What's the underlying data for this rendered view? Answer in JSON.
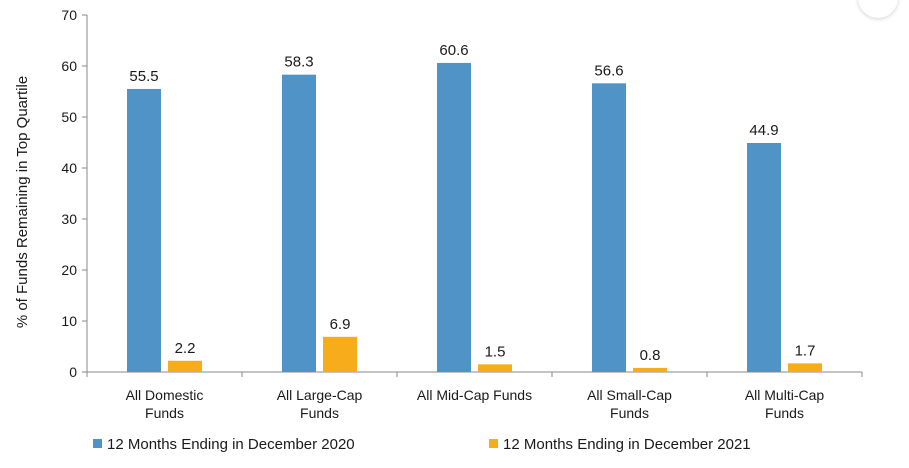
{
  "chart_data": {
    "type": "bar",
    "categories": [
      [
        "All Domestic",
        "Funds"
      ],
      [
        "All Large-Cap",
        "Funds"
      ],
      [
        "All Mid-Cap Funds"
      ],
      [
        "All Small-Cap",
        "Funds"
      ],
      [
        "All Multi-Cap",
        "Funds"
      ]
    ],
    "series": [
      {
        "name": "12 Months Ending in December 2020",
        "color": "#4f93c7",
        "values": [
          55.5,
          58.3,
          60.6,
          56.6,
          44.9
        ]
      },
      {
        "name": "12 Months Ending in December 2021",
        "color": "#f7ad1b",
        "values": [
          2.2,
          6.9,
          1.5,
          0.8,
          1.7
        ]
      }
    ],
    "ylabel": "% of Funds Remaining in Top Quartile",
    "ylim": [
      0,
      70
    ],
    "yticks": [
      0,
      10,
      20,
      30,
      40,
      50,
      60,
      70
    ],
    "legend_position": "bottom",
    "grid": false
  }
}
